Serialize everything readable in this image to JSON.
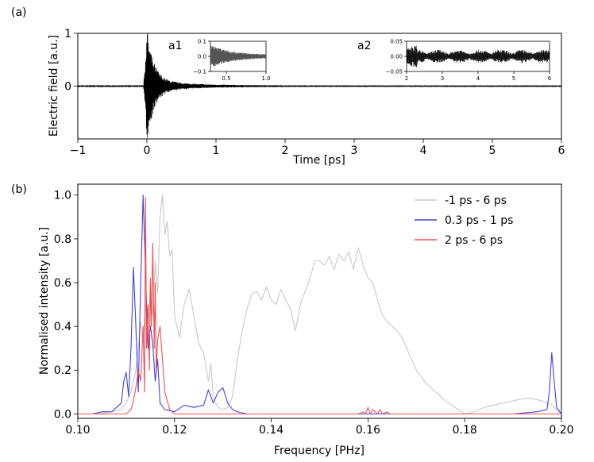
{
  "panel_labels": {
    "a": "(a)",
    "b": "(b)"
  },
  "inset_labels": {
    "a1": "a1",
    "a2": "a2"
  },
  "chart_data": [
    {
      "type": "line",
      "panel": "(a)",
      "xlabel": "Time [ps]",
      "ylabel": "Electric field [a.u.]",
      "xlim": [
        -1,
        6
      ],
      "ylim": [
        -1,
        1
      ],
      "x_ticks": [
        -1,
        0,
        1,
        2,
        3,
        4,
        5,
        6
      ],
      "x_tick_labels": [
        "−1",
        "0",
        "1",
        "2",
        "3",
        "4",
        "5",
        "6"
      ],
      "y_ticks": [
        0,
        1
      ],
      "y_tick_labels": [
        "0",
        "1"
      ],
      "grid": false,
      "series": [
        {
          "color": "#000000",
          "description_points": {
            "peak_time": 0.0,
            "peak_value": 0.98,
            "min_value": -0.92,
            "ring_decay_end": 1.0
          }
        }
      ],
      "insets": [
        {
          "label": "a1",
          "xlim": [
            0.3,
            1.0
          ],
          "ylim": [
            -0.1,
            0.1
          ],
          "x_tick_labels": [
            "0.5",
            "1.0"
          ],
          "x_ticks": [
            0.5,
            1.0
          ],
          "y_tick_labels": [
            "0.1",
            "0.0",
            "−0.1"
          ],
          "y_ticks": [
            0.1,
            0.0,
            -0.1
          ],
          "color": "#555555"
        },
        {
          "label": "a2",
          "xlim": [
            2,
            6
          ],
          "ylim": [
            -0.05,
            0.05
          ],
          "x_tick_labels": [
            "2",
            "3",
            "4",
            "5",
            "6"
          ],
          "x_ticks": [
            2,
            3,
            4,
            5,
            6
          ],
          "y_tick_labels": [
            "0.05",
            "0.00",
            "−0.05"
          ],
          "y_ticks": [
            0.05,
            0.0,
            -0.05
          ],
          "color": "#000000"
        }
      ]
    },
    {
      "type": "line",
      "panel": "(b)",
      "xlabel": "Frequency [PHz]",
      "ylabel": "Normalised intensity [a.u.]",
      "xlim": [
        0.1,
        0.2
      ],
      "ylim": [
        -0.02,
        1.05
      ],
      "x_ticks": [
        0.1,
        0.12,
        0.14,
        0.16,
        0.18,
        0.2
      ],
      "x_tick_labels": [
        "0.10",
        "0.12",
        "0.14",
        "0.16",
        "0.18",
        "0.20"
      ],
      "y_ticks": [
        0.0,
        0.2,
        0.4,
        0.6,
        0.8,
        1.0
      ],
      "y_tick_labels": [
        "0.0",
        "0.2",
        "0.4",
        "0.6",
        "0.8",
        "1.0"
      ],
      "grid": false,
      "legend_position": "top-right",
      "series": [
        {
          "name": "-1 ps - 6 ps",
          "color": "#c8c8c8",
          "x": [
            0.1,
            0.104,
            0.107,
            0.109,
            0.11,
            0.111,
            0.112,
            0.1125,
            0.113,
            0.1135,
            0.114,
            0.1145,
            0.115,
            0.1155,
            0.116,
            0.1165,
            0.117,
            0.1175,
            0.118,
            0.1185,
            0.119,
            0.1195,
            0.12,
            0.121,
            0.122,
            0.123,
            0.124,
            0.125,
            0.126,
            0.127,
            0.1275,
            0.128,
            0.1285,
            0.129,
            0.13,
            0.131,
            0.132,
            0.133,
            0.134,
            0.135,
            0.136,
            0.137,
            0.138,
            0.139,
            0.14,
            0.141,
            0.142,
            0.143,
            0.144,
            0.145,
            0.146,
            0.147,
            0.148,
            0.149,
            0.15,
            0.151,
            0.152,
            0.153,
            0.154,
            0.155,
            0.156,
            0.157,
            0.158,
            0.159,
            0.16,
            0.161,
            0.162,
            0.163,
            0.164,
            0.165,
            0.166,
            0.167,
            0.168,
            0.169,
            0.17,
            0.172,
            0.174,
            0.176,
            0.178,
            0.18,
            0.182,
            0.184,
            0.186,
            0.188,
            0.19,
            0.192,
            0.194,
            0.196,
            0.197,
            0.198,
            0.199,
            0.2
          ],
          "y": [
            0.0,
            0.0,
            0.01,
            0.02,
            0.05,
            0.1,
            0.2,
            0.3,
            0.42,
            0.33,
            0.5,
            0.38,
            0.6,
            0.45,
            0.7,
            0.55,
            0.9,
            1.0,
            0.82,
            0.88,
            0.72,
            0.75,
            0.45,
            0.35,
            0.5,
            0.57,
            0.45,
            0.32,
            0.28,
            0.15,
            0.23,
            0.08,
            0.05,
            0.03,
            0.02,
            0.03,
            0.08,
            0.25,
            0.38,
            0.48,
            0.55,
            0.56,
            0.52,
            0.58,
            0.52,
            0.5,
            0.57,
            0.52,
            0.48,
            0.38,
            0.5,
            0.56,
            0.62,
            0.7,
            0.7,
            0.68,
            0.72,
            0.66,
            0.73,
            0.7,
            0.74,
            0.66,
            0.76,
            0.68,
            0.62,
            0.6,
            0.52,
            0.45,
            0.42,
            0.4,
            0.38,
            0.35,
            0.3,
            0.25,
            0.2,
            0.14,
            0.1,
            0.06,
            0.03,
            0.0,
            0.01,
            0.03,
            0.04,
            0.05,
            0.06,
            0.07,
            0.07,
            0.06,
            0.05,
            0.04,
            0.02,
            0.0
          ]
        },
        {
          "name": "0.3 ps - 1 ps",
          "color": "#4040e0",
          "x": [
            0.1,
            0.103,
            0.105,
            0.107,
            0.108,
            0.109,
            0.1095,
            0.11,
            0.1105,
            0.111,
            0.1115,
            0.112,
            0.1125,
            0.113,
            0.1135,
            0.114,
            0.1145,
            0.115,
            0.1155,
            0.116,
            0.1165,
            0.117,
            0.118,
            0.12,
            0.122,
            0.124,
            0.126,
            0.127,
            0.128,
            0.129,
            0.13,
            0.131,
            0.132,
            0.133,
            0.135,
            0.14,
            0.15,
            0.16,
            0.17,
            0.18,
            0.19,
            0.195,
            0.197,
            0.1975,
            0.198,
            0.1985,
            0.199,
            0.2
          ],
          "y": [
            0.0,
            0.0,
            0.01,
            0.01,
            0.03,
            0.05,
            0.15,
            0.19,
            0.08,
            0.3,
            0.67,
            0.4,
            0.1,
            0.6,
            1.0,
            0.65,
            0.3,
            0.4,
            0.32,
            0.15,
            0.25,
            0.05,
            0.02,
            0.01,
            0.04,
            0.03,
            0.04,
            0.11,
            0.05,
            0.1,
            0.12,
            0.05,
            0.02,
            0.01,
            0.0,
            0.0,
            0.0,
            0.0,
            0.0,
            0.0,
            0.0,
            0.01,
            0.02,
            0.1,
            0.28,
            0.15,
            0.03,
            0.0
          ]
        },
        {
          "name": "2 ps - 6 ps",
          "color": "#f05050",
          "x": [
            0.1,
            0.11,
            0.111,
            0.1115,
            0.112,
            0.1125,
            0.113,
            0.1135,
            0.1138,
            0.114,
            0.1142,
            0.1145,
            0.1148,
            0.115,
            0.1152,
            0.1155,
            0.1158,
            0.116,
            0.1162,
            0.1165,
            0.117,
            0.1175,
            0.118,
            0.119,
            0.12,
            0.14,
            0.158,
            0.159,
            0.1595,
            0.16,
            0.1605,
            0.161,
            0.162,
            0.1625,
            0.163,
            0.164,
            0.1645,
            0.165,
            0.2
          ],
          "y": [
            0.0,
            0.0,
            0.02,
            0.06,
            0.12,
            0.2,
            0.15,
            0.4,
            0.1,
            0.99,
            0.3,
            0.5,
            0.2,
            0.62,
            0.4,
            0.78,
            0.3,
            0.6,
            0.2,
            0.34,
            0.4,
            0.25,
            0.1,
            0.02,
            0.0,
            0.0,
            0.0,
            0.01,
            0.0,
            0.03,
            0.0,
            0.02,
            0.0,
            0.02,
            0.0,
            0.01,
            0.0,
            0.0,
            0.0
          ]
        }
      ]
    }
  ]
}
